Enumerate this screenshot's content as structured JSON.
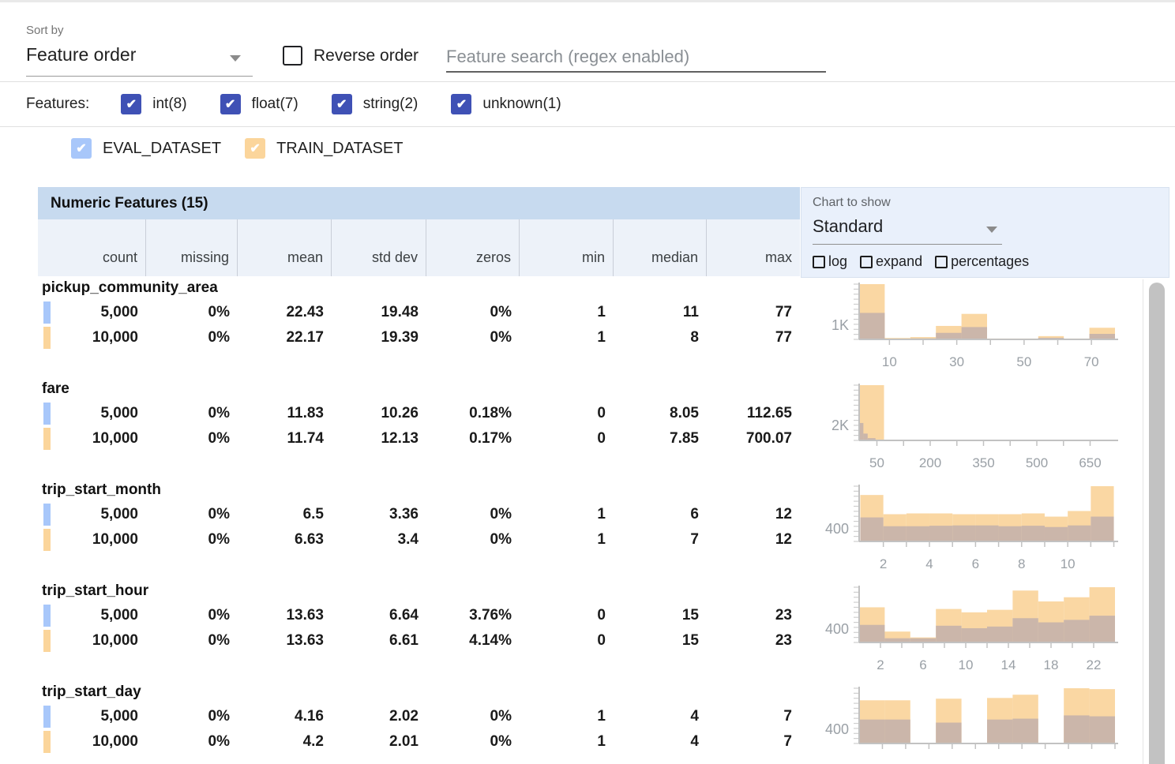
{
  "toolbar": {
    "sort_by_label": "Sort by",
    "sort_value": "Feature order",
    "reverse_label": "Reverse order",
    "search_placeholder": "Feature search (regex enabled)"
  },
  "filters": {
    "label": "Features:",
    "checkbox_color": "#3f51b5",
    "types": [
      {
        "label": "int(8)",
        "checked": true
      },
      {
        "label": "float(7)",
        "checked": true
      },
      {
        "label": "string(2)",
        "checked": true
      },
      {
        "label": "unknown(1)",
        "checked": true
      }
    ]
  },
  "legend": {
    "datasets": [
      {
        "name": "EVAL_DATASET",
        "color": "#a8c7fa",
        "checked": true
      },
      {
        "name": "TRAIN_DATASET",
        "color": "#fbd59b",
        "checked": true
      }
    ]
  },
  "table": {
    "title": "Numeric Features (15)",
    "columns": [
      "count",
      "missing",
      "mean",
      "std dev",
      "zeros",
      "min",
      "median",
      "max"
    ],
    "features": [
      {
        "name": "pickup_community_area",
        "rows": [
          {
            "dataset": "EVAL_DATASET",
            "color": "#a8c7fa",
            "values": [
              "5,000",
              "0%",
              "22.43",
              "19.48",
              "0%",
              "1",
              "11",
              "77"
            ]
          },
          {
            "dataset": "TRAIN_DATASET",
            "color": "#fbd59b",
            "values": [
              "10,000",
              "0%",
              "22.17",
              "19.39",
              "0%",
              "1",
              "8",
              "77"
            ]
          }
        ]
      },
      {
        "name": "fare",
        "rows": [
          {
            "dataset": "EVAL_DATASET",
            "color": "#a8c7fa",
            "values": [
              "5,000",
              "0%",
              "11.83",
              "10.26",
              "0.18%",
              "0",
              "8.05",
              "112.65"
            ]
          },
          {
            "dataset": "TRAIN_DATASET",
            "color": "#fbd59b",
            "values": [
              "10,000",
              "0%",
              "11.74",
              "12.13",
              "0.17%",
              "0",
              "7.85",
              "700.07"
            ]
          }
        ]
      },
      {
        "name": "trip_start_month",
        "rows": [
          {
            "dataset": "EVAL_DATASET",
            "color": "#a8c7fa",
            "values": [
              "5,000",
              "0%",
              "6.5",
              "3.36",
              "0%",
              "1",
              "6",
              "12"
            ]
          },
          {
            "dataset": "TRAIN_DATASET",
            "color": "#fbd59b",
            "values": [
              "10,000",
              "0%",
              "6.63",
              "3.4",
              "0%",
              "1",
              "7",
              "12"
            ]
          }
        ]
      },
      {
        "name": "trip_start_hour",
        "rows": [
          {
            "dataset": "EVAL_DATASET",
            "color": "#a8c7fa",
            "values": [
              "5,000",
              "0%",
              "13.63",
              "6.64",
              "3.76%",
              "0",
              "15",
              "23"
            ]
          },
          {
            "dataset": "TRAIN_DATASET",
            "color": "#fbd59b",
            "values": [
              "10,000",
              "0%",
              "13.63",
              "6.61",
              "4.14%",
              "0",
              "15",
              "23"
            ]
          }
        ]
      },
      {
        "name": "trip_start_day",
        "rows": [
          {
            "dataset": "EVAL_DATASET",
            "color": "#a8c7fa",
            "values": [
              "5,000",
              "0%",
              "4.16",
              "2.02",
              "0%",
              "1",
              "4",
              "7"
            ]
          },
          {
            "dataset": "TRAIN_DATASET",
            "color": "#fbd59b",
            "values": [
              "10,000",
              "0%",
              "4.2",
              "2.01",
              "0%",
              "1",
              "4",
              "7"
            ]
          }
        ]
      }
    ]
  },
  "chart_controls": {
    "label": "Chart to show",
    "value": "Standard",
    "toggles": [
      "log",
      "expand",
      "percentages"
    ]
  },
  "histogram_style": {
    "train_color": "#fad7a3",
    "overlap_color": "#cbb6aa",
    "axis_color": "#c2c2c2",
    "tick_label_color": "#9aa0a6"
  },
  "chart_data": [
    {
      "type": "histogram",
      "feature": "pickup_community_area",
      "series": [
        "TRAIN_DATASET",
        "EVAL_DATASET"
      ],
      "ymax": 3900,
      "ylabel": "1K",
      "ylabel_value": 1000,
      "xdomain": [
        1,
        77
      ],
      "xticks": [
        {
          "v": 10,
          "label": "10"
        },
        {
          "v": 30,
          "label": "30"
        },
        {
          "v": 50,
          "label": "50"
        },
        {
          "v": 70,
          "label": "70"
        }
      ],
      "minor_ticks": [
        10,
        20,
        30,
        40,
        50,
        60,
        70
      ],
      "show_xlabels": true,
      "bars": [
        {
          "x0": 1,
          "x1": 8.6,
          "train": 3900,
          "eval": 1870
        },
        {
          "x0": 8.6,
          "x1": 16.2,
          "train": 100,
          "eval": 40
        },
        {
          "x0": 16.2,
          "x1": 23.8,
          "train": 160,
          "eval": 70
        },
        {
          "x0": 23.8,
          "x1": 31.4,
          "train": 950,
          "eval": 460
        },
        {
          "x0": 31.4,
          "x1": 39.0,
          "train": 1800,
          "eval": 870
        },
        {
          "x0": 39.0,
          "x1": 46.6,
          "train": 60,
          "eval": 25
        },
        {
          "x0": 46.6,
          "x1": 54.2,
          "train": 60,
          "eval": 25
        },
        {
          "x0": 54.2,
          "x1": 61.8,
          "train": 230,
          "eval": 110
        },
        {
          "x0": 61.8,
          "x1": 69.4,
          "train": 60,
          "eval": 25
        },
        {
          "x0": 69.4,
          "x1": 77.0,
          "train": 820,
          "eval": 390
        }
      ]
    },
    {
      "type": "histogram",
      "feature": "fare",
      "series": [
        "TRAIN_DATASET",
        "EVAL_DATASET"
      ],
      "ymax": 7300,
      "ylabel": "2K",
      "ylabel_value": 2000,
      "xdomain": [
        0,
        720
      ],
      "xticks": [
        {
          "v": 50,
          "label": "50"
        },
        {
          "v": 200,
          "label": "200"
        },
        {
          "v": 350,
          "label": "350"
        },
        {
          "v": 500,
          "label": "500"
        },
        {
          "v": 650,
          "label": "650"
        }
      ],
      "minor_ticks": [
        50,
        125,
        200,
        275,
        350,
        425,
        500,
        575,
        650
      ],
      "show_xlabels": true,
      "bars": [
        {
          "x0": 0,
          "x1": 70,
          "train": 7300,
          "eval": 0
        },
        {
          "x0": 0,
          "x1": 12,
          "train": 0,
          "eval": 2300
        },
        {
          "x0": 12,
          "x1": 24,
          "train": 0,
          "eval": 900
        },
        {
          "x0": 24,
          "x1": 46,
          "train": 0,
          "eval": 300
        }
      ]
    },
    {
      "type": "histogram",
      "feature": "trip_start_month",
      "series": [
        "TRAIN_DATASET",
        "EVAL_DATASET"
      ],
      "ymax": 1725,
      "ylabel": "400",
      "ylabel_value": 400,
      "xdomain": [
        0.95,
        12.05
      ],
      "xticks": [
        {
          "v": 2,
          "label": "2"
        },
        {
          "v": 4,
          "label": "4"
        },
        {
          "v": 6,
          "label": "6"
        },
        {
          "v": 8,
          "label": "8"
        },
        {
          "v": 10,
          "label": "10"
        }
      ],
      "minor_ticks": [
        2,
        3,
        4,
        5,
        6,
        7,
        8,
        9,
        10,
        11,
        12
      ],
      "show_xlabels": true,
      "bars": [
        {
          "x0": 1,
          "x1": 2,
          "train": 1450,
          "eval": 750
        },
        {
          "x0": 2,
          "x1": 3,
          "train": 850,
          "eval": 475
        },
        {
          "x0": 3,
          "x1": 4,
          "train": 875,
          "eval": 475
        },
        {
          "x0": 4,
          "x1": 5,
          "train": 875,
          "eval": 490
        },
        {
          "x0": 5,
          "x1": 6,
          "train": 850,
          "eval": 500
        },
        {
          "x0": 6,
          "x1": 7,
          "train": 850,
          "eval": 500
        },
        {
          "x0": 7,
          "x1": 8,
          "train": 850,
          "eval": 475
        },
        {
          "x0": 8,
          "x1": 9,
          "train": 875,
          "eval": 490
        },
        {
          "x0": 9,
          "x1": 10,
          "train": 775,
          "eval": 450
        },
        {
          "x0": 10,
          "x1": 11,
          "train": 950,
          "eval": 500
        },
        {
          "x0": 11,
          "x1": 12,
          "train": 1725,
          "eval": 775
        }
      ]
    },
    {
      "type": "histogram",
      "feature": "trip_start_hour",
      "series": [
        "TRAIN_DATASET",
        "EVAL_DATASET"
      ],
      "ymax": 1650,
      "ylabel": "400",
      "ylabel_value": 400,
      "xdomain": [
        0,
        24
      ],
      "xticks": [
        {
          "v": 2,
          "label": "2"
        },
        {
          "v": 6,
          "label": "6"
        },
        {
          "v": 10,
          "label": "10"
        },
        {
          "v": 14,
          "label": "14"
        },
        {
          "v": 18,
          "label": "18"
        },
        {
          "v": 22,
          "label": "22"
        }
      ],
      "minor_ticks": [
        2,
        4,
        6,
        8,
        10,
        12,
        14,
        16,
        18,
        20,
        22
      ],
      "show_xlabels": true,
      "bars": [
        {
          "x0": 0,
          "x1": 2.4,
          "train": 1050,
          "eval": 525
        },
        {
          "x0": 2.4,
          "x1": 4.8,
          "train": 325,
          "eval": 125
        },
        {
          "x0": 4.8,
          "x1": 7.2,
          "train": 150,
          "eval": 125
        },
        {
          "x0": 7.2,
          "x1": 9.6,
          "train": 1000,
          "eval": 500
        },
        {
          "x0": 9.6,
          "x1": 12.0,
          "train": 900,
          "eval": 425
        },
        {
          "x0": 12.0,
          "x1": 14.4,
          "train": 975,
          "eval": 475
        },
        {
          "x0": 14.4,
          "x1": 16.8,
          "train": 1550,
          "eval": 725
        },
        {
          "x0": 16.8,
          "x1": 19.2,
          "train": 1225,
          "eval": 600
        },
        {
          "x0": 19.2,
          "x1": 21.6,
          "train": 1350,
          "eval": 675
        },
        {
          "x0": 21.6,
          "x1": 24.0,
          "train": 1650,
          "eval": 800
        }
      ]
    },
    {
      "type": "histogram",
      "feature": "trip_start_day",
      "series": [
        "TRAIN_DATASET",
        "EVAL_DATASET"
      ],
      "ymax": 1535,
      "ylabel": "400",
      "ylabel_value": 400,
      "xdomain": [
        1,
        7.6
      ],
      "xticks": [],
      "minor_ticks": [
        1.6,
        2.2,
        2.8,
        3.4,
        4.0,
        4.6,
        5.2,
        5.8,
        6.4,
        7.0,
        7.6
      ],
      "show_xlabels": false,
      "bars": [
        {
          "x0": 1.0,
          "x1": 1.66,
          "train": 1200,
          "eval": 665
        },
        {
          "x0": 1.66,
          "x1": 2.32,
          "train": 1200,
          "eval": 665
        },
        {
          "x0": 2.98,
          "x1": 3.64,
          "train": 1245,
          "eval": 580
        },
        {
          "x0": 4.3,
          "x1": 4.96,
          "train": 1265,
          "eval": 665
        },
        {
          "x0": 4.96,
          "x1": 5.62,
          "train": 1355,
          "eval": 690
        },
        {
          "x0": 6.28,
          "x1": 6.94,
          "train": 1535,
          "eval": 780
        },
        {
          "x0": 6.94,
          "x1": 7.6,
          "train": 1510,
          "eval": 755
        }
      ]
    }
  ]
}
